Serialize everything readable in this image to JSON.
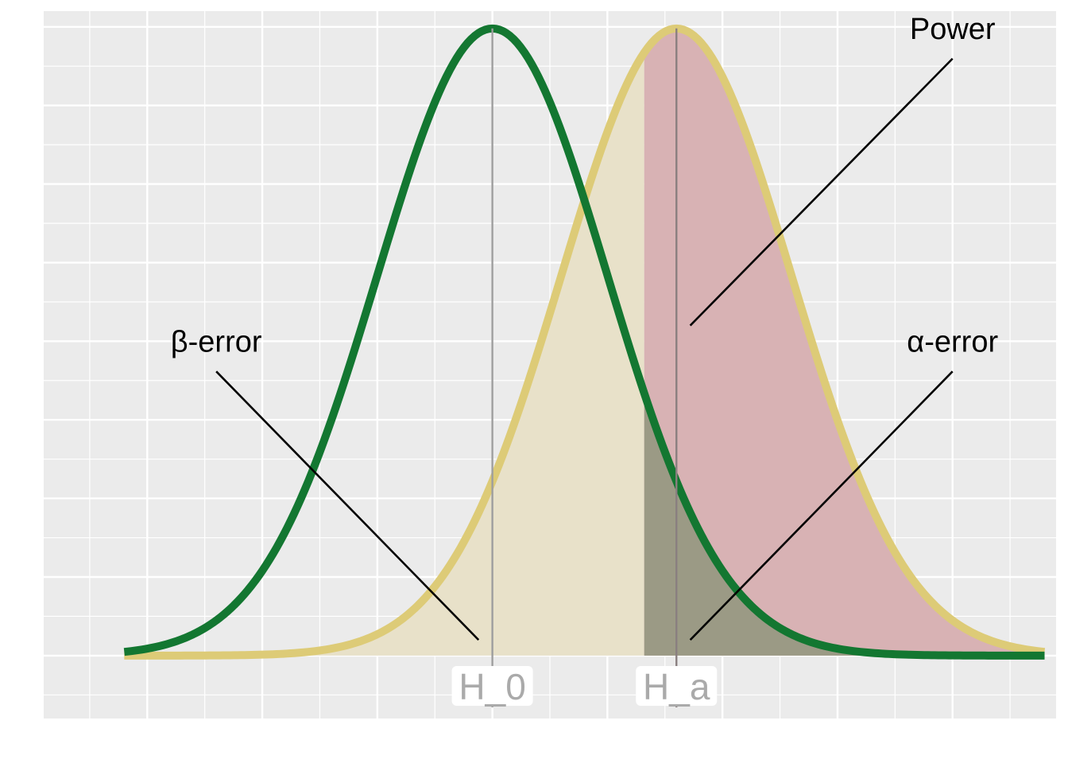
{
  "chart_data": {
    "type": "line",
    "title": "",
    "xlabel": "",
    "ylabel": "",
    "xlim": [
      -3.9,
      4.9
    ],
    "ylim": [
      -0.04,
      0.41
    ],
    "grid": true,
    "series": [
      {
        "mean": 0,
        "sd": 1,
        "color": "#137731"
      },
      {
        "mean": 1.6,
        "sd": 1,
        "color": "#DDCB77"
      }
    ],
    "critical_value": 1.32,
    "x_range": [
      -3.2,
      4.8
    ],
    "hypotheses": [
      {
        "x": 0,
        "label": "H_0"
      },
      {
        "x": 1.6,
        "label": "H_a"
      }
    ],
    "regions": [
      {
        "name": "beta",
        "color": "#E8E1C9",
        "description": "alternative density left of critical value"
      },
      {
        "name": "power",
        "color": "#D8B2B4",
        "description": "alternative density right of critical value"
      },
      {
        "name": "alpha",
        "color": "#9B9A85",
        "description": "null density right of critical value"
      }
    ],
    "annotations": [
      {
        "label": "Power",
        "text_x": 4.0,
        "text_y": 0.399,
        "point_x": 1.72,
        "point_y": 0.21
      },
      {
        "label": "β-error",
        "text_x": -2.4,
        "text_y": 0.2,
        "point_x": -0.12,
        "point_y": 0.01
      },
      {
        "label": "α-error",
        "text_x": 4.0,
        "text_y": 0.2,
        "point_x": 1.72,
        "point_y": 0.01
      }
    ]
  }
}
